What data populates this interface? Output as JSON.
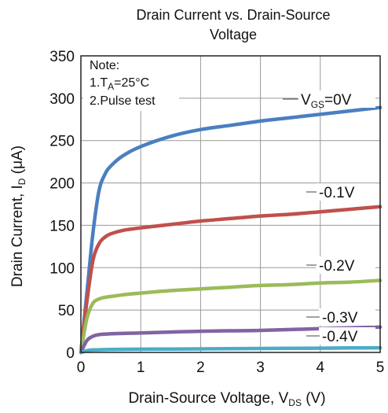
{
  "chart_data": {
    "type": "line",
    "title_line1": "Drain Current vs. Drain-Source",
    "title_line2": "Voltage",
    "ylabel_main": "Drain Current, I",
    "ylabel_sub": "D",
    "ylabel_unit": " (μA)",
    "xlabel_main": "Drain-Source Voltage, V",
    "xlabel_sub": "DS",
    "xlabel_unit": " (V)",
    "xlim": [
      0,
      5
    ],
    "ylim": [
      0,
      350
    ],
    "x_ticks": [
      "0",
      "1",
      "2",
      "3",
      "4",
      "5"
    ],
    "y_ticks": [
      "0",
      "50",
      "100",
      "150",
      "200",
      "250",
      "300",
      "350"
    ],
    "grid": true,
    "note": {
      "heading": "Note:",
      "line1_prefix": "1.T",
      "line1_sub": "A",
      "line1_suffix": "=25°C",
      "line2": "2.Pulse test"
    },
    "series": [
      {
        "name": "VGS=0V",
        "label_main": "V",
        "label_sub": "GS",
        "label_suffix": "=0V",
        "color": "#4a7fc1",
        "x": [
          0,
          0.1,
          0.2,
          0.3,
          0.4,
          0.5,
          0.7,
          1.0,
          1.5,
          2.0,
          2.5,
          3.0,
          3.5,
          4.0,
          4.5,
          5.0
        ],
        "y": [
          0,
          70,
          140,
          190,
          210,
          220,
          232,
          243,
          255,
          263,
          268,
          273,
          277,
          281,
          285,
          289
        ]
      },
      {
        "name": "-0.1V",
        "label_main": "-0.1V",
        "color": "#c0504d",
        "x": [
          0,
          0.1,
          0.2,
          0.3,
          0.4,
          0.5,
          0.7,
          1.0,
          1.5,
          2.0,
          2.5,
          3.0,
          3.5,
          4.0,
          4.5,
          5.0
        ],
        "y": [
          0,
          60,
          108,
          128,
          136,
          140,
          144,
          147,
          151,
          155,
          158,
          161,
          163,
          166,
          169,
          172
        ]
      },
      {
        "name": "-0.2V",
        "label_main": "-0.2V",
        "color": "#9bbb59",
        "x": [
          0,
          0.1,
          0.2,
          0.3,
          0.4,
          0.5,
          0.7,
          1.0,
          1.5,
          2.0,
          2.5,
          3.0,
          3.5,
          4.0,
          4.5,
          5.0
        ],
        "y": [
          0,
          40,
          58,
          63,
          65,
          66,
          68,
          70,
          73,
          75,
          77,
          79,
          80,
          82,
          83,
          85
        ]
      },
      {
        "name": "-0.3V",
        "label_main": "-0.3V",
        "color": "#8064a2",
        "x": [
          0,
          0.1,
          0.2,
          0.3,
          0.5,
          1.0,
          1.5,
          2.0,
          2.5,
          3.0,
          3.5,
          4.0,
          4.5,
          5.0
        ],
        "y": [
          0,
          14,
          19,
          21,
          22,
          23,
          24,
          25,
          25.5,
          26,
          27,
          28,
          29,
          30
        ]
      },
      {
        "name": "-0.4V",
        "label_main": "-0.4V",
        "color": "#4bacc6",
        "x": [
          0,
          0.1,
          0.2,
          0.3,
          0.5,
          1.0,
          1.5,
          2.0,
          2.5,
          3.0,
          3.5,
          4.0,
          4.5,
          5.0
        ],
        "y": [
          0,
          2,
          3,
          3.2,
          3.5,
          3.8,
          4,
          4.2,
          4.4,
          4.6,
          4.8,
          5,
          5.3,
          5.5
        ]
      }
    ]
  }
}
